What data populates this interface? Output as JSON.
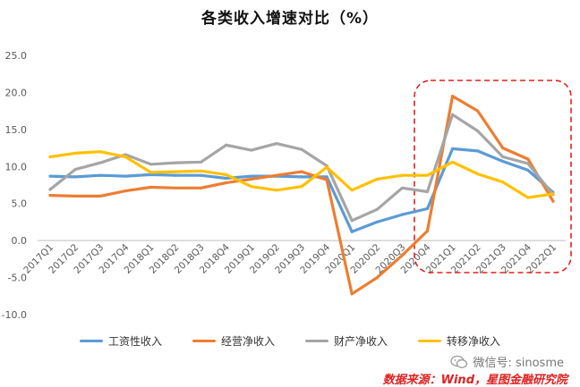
{
  "title": "各类收入增速对比（%）",
  "chart_data": {
    "type": "line",
    "categories": [
      "2017Q1",
      "2017Q2",
      "2017Q3",
      "2017Q4",
      "2018Q1",
      "2018Q2",
      "2018Q3",
      "2018Q4",
      "2019Q1",
      "2019Q2",
      "2019Q3",
      "2019Q4",
      "2020Q1",
      "2020Q2",
      "2020Q3",
      "2020Q4",
      "2021Q1",
      "2021Q2",
      "2021Q3",
      "2021Q4",
      "2022Q1"
    ],
    "ylim": [
      -10,
      25
    ],
    "yticks": [
      "25.0",
      "20.0",
      "15.0",
      "10.0",
      "5.0",
      "0.0",
      "-5.0",
      "-10.0"
    ],
    "grid": false,
    "legend_position": "bottom",
    "series": [
      {
        "name": "工资性收入",
        "color": "#5b9bd5",
        "values": [
          8.7,
          8.6,
          8.8,
          8.7,
          8.9,
          8.8,
          8.8,
          8.4,
          8.7,
          8.7,
          8.6,
          8.6,
          1.2,
          2.5,
          3.5,
          4.3,
          12.4,
          12.1,
          10.7,
          9.5,
          6.5
        ]
      },
      {
        "name": "经营净收入",
        "color": "#ed7d31",
        "values": [
          6.1,
          6.0,
          6.0,
          6.7,
          7.2,
          7.1,
          7.1,
          7.8,
          8.3,
          8.8,
          9.3,
          8.2,
          -7.2,
          -5.0,
          -2.0,
          1.3,
          19.5,
          17.5,
          12.5,
          11.0,
          5.3
        ]
      },
      {
        "name": "财产净收入",
        "color": "#a5a5a5",
        "values": [
          6.9,
          9.6,
          10.5,
          11.6,
          10.3,
          10.5,
          10.6,
          12.9,
          12.2,
          13.1,
          12.3,
          10.1,
          2.7,
          4.2,
          7.1,
          6.6,
          17.0,
          14.8,
          11.3,
          10.4,
          6.2
        ]
      },
      {
        "name": "转移净收入",
        "color": "#ffc000",
        "values": [
          11.3,
          11.8,
          12.0,
          11.3,
          9.2,
          9.3,
          9.4,
          8.9,
          7.3,
          6.8,
          7.3,
          9.9,
          6.8,
          8.3,
          8.8,
          8.8,
          10.6,
          9.0,
          7.9,
          5.8,
          6.3
        ]
      }
    ]
  },
  "legend": [
    "工资性收入",
    "经营净收入",
    "财产净收入",
    "转移净收入"
  ],
  "watermark": {
    "icon": "wechat-icon",
    "text": "微信号: sinosme"
  },
  "source": "数据来源：Wind，星图金融研究院"
}
